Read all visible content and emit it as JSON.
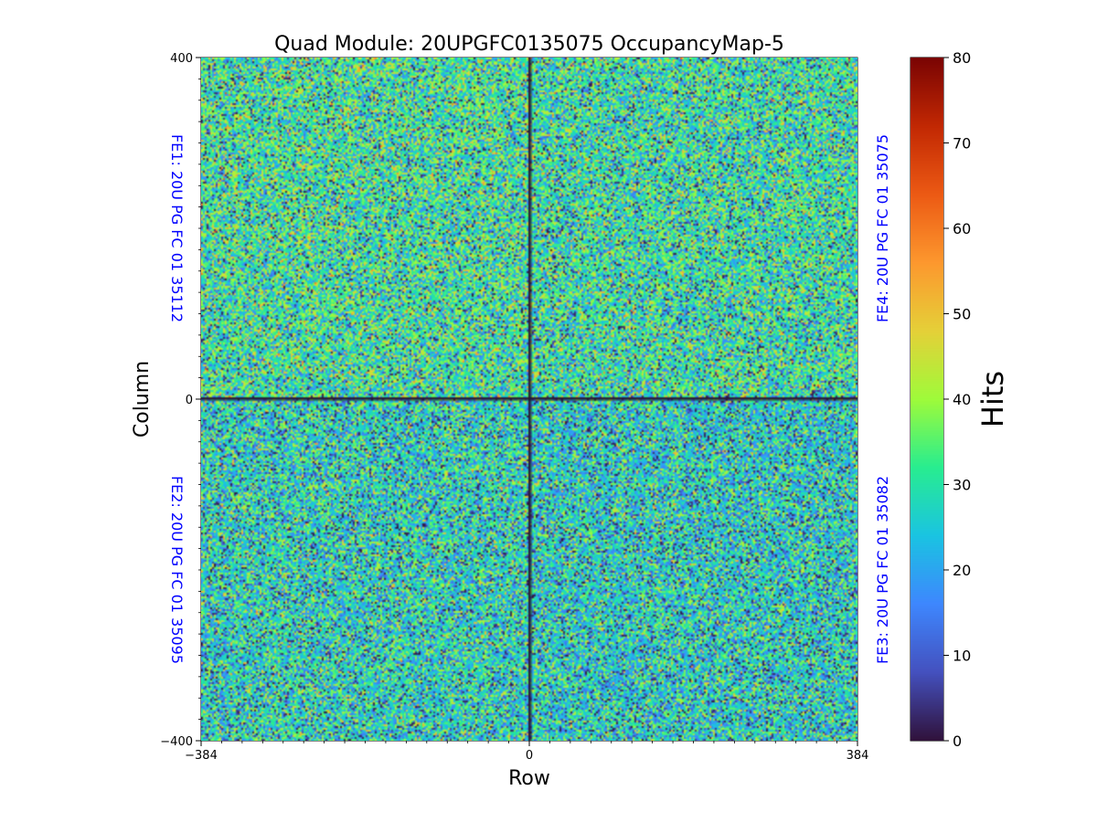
{
  "chart_data": {
    "type": "heatmap",
    "title": "Quad Module: 20UPGFC0135075 OccupancyMap-5",
    "xlabel": "Row",
    "ylabel": "Column",
    "xlim": [
      -384,
      384
    ],
    "ylim": [
      -400,
      400
    ],
    "x_ticks": [
      {
        "value": -384,
        "label": "−384"
      },
      {
        "value": 0,
        "label": "0"
      },
      {
        "value": 384,
        "label": "384"
      }
    ],
    "y_ticks": [
      {
        "value": 400,
        "label": "400"
      },
      {
        "value": 0,
        "label": "0"
      },
      {
        "value": -400,
        "label": "−400"
      }
    ],
    "colorbar": {
      "label": "Hits",
      "range": [
        0,
        80
      ],
      "ticks": [
        0,
        10,
        20,
        30,
        40,
        50,
        60,
        70,
        80
      ],
      "colormap": "turbo"
    },
    "chip_labels": [
      {
        "id": "fe1",
        "text": "FE1: 20U PG FC 01 35112",
        "quadrant": "top-left",
        "color": "#0000ff"
      },
      {
        "id": "fe2",
        "text": "FE2: 20U PG FC 01 35095",
        "quadrant": "bottom-left",
        "color": "#0000ff"
      },
      {
        "id": "fe4",
        "text": "FE4: 20U PG FC 01 35075",
        "quadrant": "top-right",
        "color": "#0000ff"
      },
      {
        "id": "fe3",
        "text": "FE3: 20U PG FC 01 35082",
        "quadrant": "bottom-right",
        "color": "#0000ff"
      }
    ],
    "quadrant_mean_hits": {
      "top-left": 31,
      "top-right": 30,
      "bottom-left": 27,
      "bottom-right": 26
    },
    "dead_lines": {
      "row": 0,
      "column": 0
    }
  }
}
